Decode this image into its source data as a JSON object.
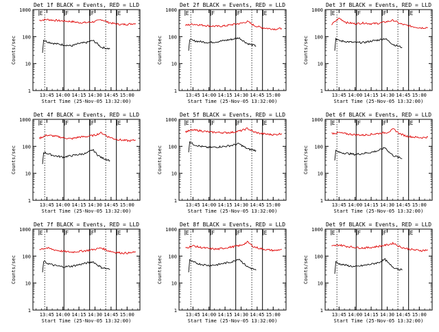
{
  "chart_data": [
    {
      "type": "line",
      "title": "Det 1f BLACK = Events, RED = LLD",
      "ylabel": "Counts/sec",
      "xlabel": "Start Time (25-Nov-05 13:32:00)",
      "x_tick_labels": [
        "13:45",
        "14:00",
        "14:15",
        "14:30",
        "14:45",
        "15:00"
      ],
      "y_tick_labels": [
        "1",
        "10",
        "100",
        "1000"
      ],
      "y_scale": "log",
      "ylim": [
        1,
        1000
      ],
      "flag_labels": [
        "E",
        "F",
        "F",
        "E"
      ],
      "series": [
        {
          "color": "#e00000",
          "x": [
            "13:38",
            "13:45",
            "13:52",
            "14:00",
            "14:08",
            "14:15",
            "14:22",
            "14:30",
            "14:36",
            "14:42",
            "14:48",
            "14:55",
            "15:02",
            "15:08"
          ],
          "values": [
            400,
            430,
            400,
            380,
            360,
            330,
            330,
            360,
            430,
            340,
            300,
            280,
            290,
            310
          ]
        },
        {
          "color": "#000000",
          "x": [
            "13:41",
            "13:42",
            "13:45",
            "13:52",
            "14:00",
            "14:08",
            "14:15",
            "14:22",
            "14:28",
            "14:32",
            "14:36",
            "14:44"
          ],
          "values": [
            25,
            75,
            65,
            55,
            50,
            45,
            55,
            60,
            72,
            55,
            40,
            35
          ]
        }
      ]
    },
    {
      "type": "line",
      "title": "Det 2f BLACK = Events, RED = LLD",
      "ylabel": "Counts/sec",
      "xlabel": "Start Time (25-Nov-05 13:32:00)",
      "x_tick_labels": [
        "13:45",
        "14:00",
        "14:15",
        "14:30",
        "14:45",
        "15:00"
      ],
      "y_tick_labels": [
        "1",
        "10",
        "100",
        "1000"
      ],
      "y_scale": "log",
      "ylim": [
        1,
        1000
      ],
      "flag_labels": [
        "E",
        "F",
        "F",
        "E"
      ],
      "series": [
        {
          "color": "#e00000",
          "x": [
            "13:38",
            "13:45",
            "13:52",
            "14:00",
            "14:08",
            "14:15",
            "14:22",
            "14:30",
            "14:36",
            "14:42",
            "14:48",
            "14:55",
            "15:02",
            "15:08"
          ],
          "values": [
            260,
            290,
            270,
            250,
            240,
            250,
            280,
            310,
            360,
            260,
            220,
            200,
            190,
            200
          ]
        },
        {
          "color": "#000000",
          "x": [
            "13:41",
            "13:42",
            "13:45",
            "13:52",
            "14:00",
            "14:08",
            "14:15",
            "14:22",
            "14:28",
            "14:32",
            "14:36",
            "14:44"
          ],
          "values": [
            30,
            80,
            70,
            65,
            60,
            65,
            72,
            80,
            90,
            70,
            55,
            45
          ]
        }
      ]
    },
    {
      "type": "line",
      "title": "Det 3f BLACK = Events, RED = LLD",
      "ylabel": "Counts/sec",
      "xlabel": "Start Time (25-Nov-05 13:32:00)",
      "x_tick_labels": [
        "13:45",
        "14:00",
        "14:15",
        "14:30",
        "14:45",
        "15:00"
      ],
      "y_tick_labels": [
        "1",
        "10",
        "100",
        "1000"
      ],
      "y_scale": "log",
      "ylim": [
        1,
        1000
      ],
      "flag_labels": [
        "E",
        "F",
        "F",
        "E"
      ],
      "series": [
        {
          "color": "#e00000",
          "x": [
            "13:38",
            "13:45",
            "13:52",
            "14:00",
            "14:08",
            "14:15",
            "14:22",
            "14:30",
            "14:36",
            "14:42",
            "14:48",
            "14:55",
            "15:02",
            "15:08"
          ],
          "values": [
            280,
            480,
            330,
            300,
            320,
            300,
            310,
            360,
            400,
            300,
            260,
            230,
            210,
            220
          ]
        },
        {
          "color": "#000000",
          "x": [
            "13:41",
            "13:42",
            "13:45",
            "13:52",
            "14:00",
            "14:08",
            "14:15",
            "14:22",
            "14:28",
            "14:32",
            "14:36",
            "14:44"
          ],
          "values": [
            30,
            85,
            70,
            65,
            60,
            60,
            68,
            75,
            85,
            65,
            50,
            40
          ]
        }
      ]
    },
    {
      "type": "line",
      "title": "Det 4f BLACK = Events, RED = LLD",
      "ylabel": "Counts/sec",
      "xlabel": "Start Time (25-Nov-05 13:32:00)",
      "x_tick_labels": [
        "13:45",
        "14:00",
        "14:15",
        "14:30",
        "14:45",
        "15:00"
      ],
      "y_tick_labels": [
        "1",
        "10",
        "100",
        "1000"
      ],
      "y_scale": "log",
      "ylim": [
        1,
        1000
      ],
      "flag_labels": [
        "E",
        "F",
        "F",
        "E"
      ],
      "series": [
        {
          "color": "#e00000",
          "x": [
            "13:38",
            "13:45",
            "13:52",
            "14:00",
            "14:08",
            "14:15",
            "14:22",
            "14:30",
            "14:36",
            "14:42",
            "14:48",
            "14:55",
            "15:02",
            "15:08"
          ],
          "values": [
            200,
            260,
            240,
            210,
            190,
            220,
            230,
            260,
            320,
            230,
            190,
            170,
            160,
            170
          ]
        },
        {
          "color": "#000000",
          "x": [
            "13:41",
            "13:42",
            "13:45",
            "13:52",
            "14:00",
            "14:08",
            "14:15",
            "14:22",
            "14:28",
            "14:32",
            "14:36",
            "14:44"
          ],
          "values": [
            22,
            60,
            55,
            45,
            40,
            45,
            50,
            55,
            75,
            50,
            38,
            30
          ]
        }
      ]
    },
    {
      "type": "line",
      "title": "Det 5f BLACK = Events, RED = LLD",
      "ylabel": "Counts/sec",
      "xlabel": "Start Time (25-Nov-05 13:32:00)",
      "x_tick_labels": [
        "13:45",
        "14:00",
        "14:15",
        "14:30",
        "14:45",
        "15:00"
      ],
      "y_tick_labels": [
        "1",
        "10",
        "100",
        "1000"
      ],
      "y_scale": "log",
      "ylim": [
        1,
        1000
      ],
      "flag_labels": [
        "E",
        "F",
        "F",
        "E"
      ],
      "series": [
        {
          "color": "#e00000",
          "x": [
            "13:38",
            "13:45",
            "13:52",
            "14:00",
            "14:08",
            "14:15",
            "14:22",
            "14:30",
            "14:36",
            "14:42",
            "14:48",
            "14:55",
            "15:02",
            "15:08"
          ],
          "values": [
            350,
            400,
            380,
            340,
            330,
            320,
            330,
            380,
            460,
            340,
            300,
            280,
            270,
            300
          ]
        },
        {
          "color": "#000000",
          "x": [
            "13:41",
            "13:42",
            "13:45",
            "13:52",
            "14:00",
            "14:08",
            "14:15",
            "14:22",
            "14:28",
            "14:32",
            "14:36",
            "14:44"
          ],
          "values": [
            60,
            150,
            120,
            100,
            90,
            95,
            100,
            110,
            125,
            100,
            80,
            70
          ]
        }
      ]
    },
    {
      "type": "line",
      "title": "Det 6f BLACK = Events, RED = LLD",
      "ylabel": "Counts/sec",
      "xlabel": "Start Time (25-Nov-05 13:32:00)",
      "x_tick_labels": [
        "13:45",
        "14:00",
        "14:15",
        "14:30",
        "14:45",
        "15:00"
      ],
      "y_tick_labels": [
        "1",
        "10",
        "100",
        "1000"
      ],
      "y_scale": "log",
      "ylim": [
        1,
        1000
      ],
      "flag_labels": [
        "E",
        "F",
        "F",
        "E"
      ],
      "series": [
        {
          "color": "#e00000",
          "x": [
            "13:38",
            "13:45",
            "13:52",
            "14:00",
            "14:08",
            "14:15",
            "14:22",
            "14:30",
            "14:36",
            "14:42",
            "14:48",
            "14:55",
            "15:02",
            "15:08"
          ],
          "values": [
            300,
            320,
            290,
            270,
            260,
            280,
            300,
            330,
            430,
            290,
            240,
            220,
            210,
            220
          ]
        },
        {
          "color": "#000000",
          "x": [
            "13:41",
            "13:42",
            "13:45",
            "13:52",
            "14:00",
            "14:08",
            "14:15",
            "14:22",
            "14:28",
            "14:32",
            "14:36",
            "14:44"
          ],
          "values": [
            30,
            70,
            60,
            55,
            50,
            55,
            60,
            70,
            90,
            60,
            45,
            35
          ]
        }
      ]
    },
    {
      "type": "line",
      "title": "Det 7f BLACK = Events, RED = LLD",
      "ylabel": "Counts/sec",
      "xlabel": "Start Time (25-Nov-05 13:32:00)",
      "x_tick_labels": [
        "13:45",
        "14:00",
        "14:15",
        "14:30",
        "14:45",
        "15:00"
      ],
      "y_tick_labels": [
        "1",
        "10",
        "100",
        "1000"
      ],
      "y_scale": "log",
      "ylim": [
        1,
        1000
      ],
      "flag_labels": [
        "E",
        "F",
        "F",
        "E"
      ],
      "series": [
        {
          "color": "#e00000",
          "x": [
            "13:38",
            "13:45",
            "13:52",
            "14:00",
            "14:08",
            "14:15",
            "14:22",
            "14:30",
            "14:36",
            "14:42",
            "14:48",
            "14:55",
            "15:02",
            "15:08"
          ],
          "values": [
            180,
            200,
            170,
            150,
            140,
            150,
            160,
            180,
            200,
            160,
            140,
            130,
            130,
            140
          ]
        },
        {
          "color": "#000000",
          "x": [
            "13:41",
            "13:42",
            "13:45",
            "13:52",
            "14:00",
            "14:08",
            "14:15",
            "14:22",
            "14:28",
            "14:32",
            "14:36",
            "14:44"
          ],
          "values": [
            25,
            65,
            55,
            45,
            40,
            42,
            48,
            55,
            62,
            48,
            38,
            32
          ]
        }
      ]
    },
    {
      "type": "line",
      "title": "Det 8f BLACK = Events, RED = LLD",
      "ylabel": "Counts/sec",
      "xlabel": "Start Time (25-Nov-05 13:32:00)",
      "x_tick_labels": [
        "13:45",
        "14:00",
        "14:15",
        "14:30",
        "14:45",
        "15:00"
      ],
      "y_tick_labels": [
        "1",
        "10",
        "100",
        "1000"
      ],
      "y_scale": "log",
      "ylim": [
        1,
        1000
      ],
      "flag_labels": [
        "E",
        "F",
        "F",
        "E"
      ],
      "series": [
        {
          "color": "#e00000",
          "x": [
            "13:38",
            "13:45",
            "13:52",
            "14:00",
            "14:08",
            "14:15",
            "14:22",
            "14:30",
            "14:36",
            "14:42",
            "14:48",
            "14:55",
            "15:02",
            "15:08"
          ],
          "values": [
            200,
            240,
            210,
            190,
            180,
            200,
            220,
            250,
            330,
            220,
            190,
            170,
            160,
            180
          ]
        },
        {
          "color": "#000000",
          "x": [
            "13:41",
            "13:42",
            "13:45",
            "13:52",
            "14:00",
            "14:08",
            "14:15",
            "14:22",
            "14:28",
            "14:32",
            "14:36",
            "14:44"
          ],
          "values": [
            25,
            70,
            60,
            50,
            45,
            48,
            55,
            62,
            80,
            55,
            40,
            30
          ]
        }
      ]
    },
    {
      "type": "line",
      "title": "Det 9f BLACK = Events, RED = LLD",
      "ylabel": "Counts/sec",
      "xlabel": "Start Time (25-Nov-05 13:32:00)",
      "x_tick_labels": [
        "13:45",
        "14:00",
        "14:15",
        "14:30",
        "14:45",
        "15:00"
      ],
      "y_tick_labels": [
        "1",
        "10",
        "100",
        "1000"
      ],
      "y_scale": "log",
      "ylim": [
        1,
        1000
      ],
      "flag_labels": [
        "E",
        "F",
        "F",
        "E"
      ],
      "series": [
        {
          "color": "#e00000",
          "x": [
            "13:38",
            "13:45",
            "13:52",
            "14:00",
            "14:08",
            "14:15",
            "14:22",
            "14:30",
            "14:36",
            "14:42",
            "14:48",
            "14:55",
            "15:02",
            "15:08"
          ],
          "values": [
            230,
            260,
            230,
            210,
            200,
            210,
            230,
            260,
            300,
            220,
            190,
            170,
            160,
            170
          ]
        },
        {
          "color": "#000000",
          "x": [
            "13:41",
            "13:42",
            "13:45",
            "13:52",
            "14:00",
            "14:08",
            "14:15",
            "14:22",
            "14:28",
            "14:32",
            "14:36",
            "14:44"
          ],
          "values": [
            22,
            60,
            52,
            45,
            40,
            45,
            50,
            58,
            75,
            50,
            38,
            30
          ]
        }
      ]
    }
  ]
}
